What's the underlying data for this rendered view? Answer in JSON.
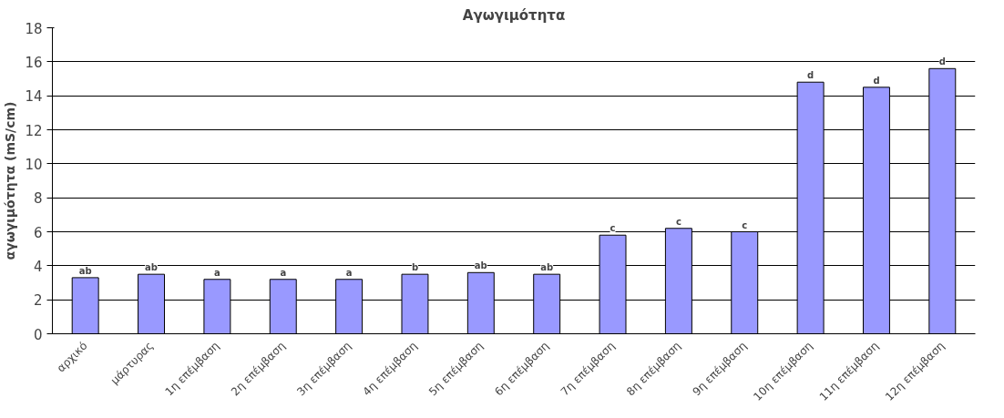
{
  "chart_data": {
    "type": "bar",
    "title": "Αγωγιμότητα",
    "ylabel": "αγωγιμότητα (mS/cm)",
    "categories": [
      "αρχικό",
      "μάρτυρας",
      "1η επέμβαση",
      "2η επέμβαση",
      "3η επέμβαση",
      "4η επέμβαση",
      "5η επέμβαση",
      "6η επέμβαση",
      "7η επέμβαση",
      "8η επέμβαση",
      "9η επέμβαση",
      "10η επέμβαση",
      "11η επέμβαση",
      "12η επέμβαση"
    ],
    "values": [
      3.3,
      3.5,
      3.2,
      3.2,
      3.2,
      3.5,
      3.6,
      3.5,
      5.8,
      6.2,
      6.0,
      14.8,
      14.5,
      15.6
    ],
    "value_labels": [
      "ab",
      "ab",
      "a",
      "a",
      "a",
      "b",
      "ab",
      "ab",
      "c",
      "c",
      "c",
      "d",
      "d",
      "d"
    ],
    "color": "#9999ff",
    "ylim": [
      0,
      18
    ],
    "yticks": [
      0,
      2,
      4,
      6,
      8,
      10,
      12,
      14,
      16,
      18
    ],
    "grid": "y"
  }
}
